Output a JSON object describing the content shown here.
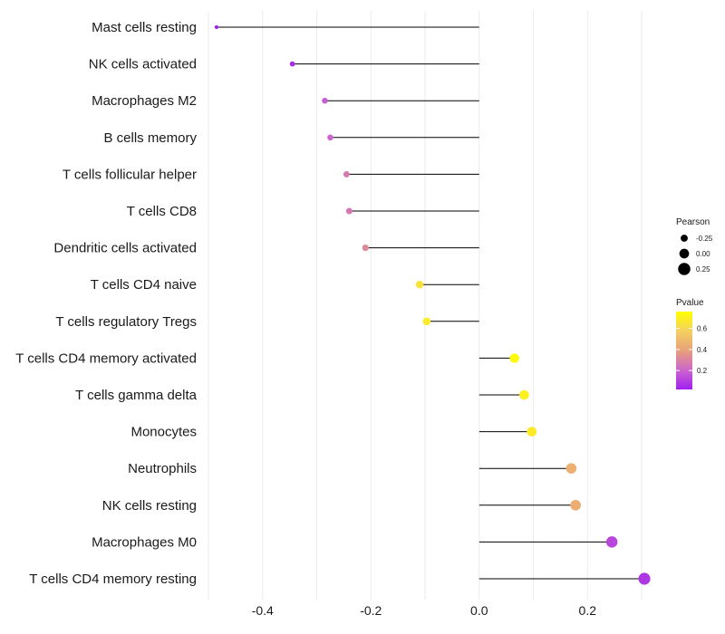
{
  "chart_data": {
    "type": "lollipop",
    "xlim": [
      -0.5,
      0.32
    ],
    "x_ticks": [
      -0.4,
      -0.2,
      0.0,
      0.2
    ],
    "x_tick_labels": [
      "-0.4",
      "-0.2",
      "0.0",
      "0.2"
    ],
    "grid": true,
    "legend_placement": "right",
    "categories": [
      "Mast cells resting",
      "NK cells activated",
      "Macrophages M2",
      "B cells memory",
      "T cells follicular helper",
      "T cells CD8",
      "Dendritic cells activated",
      "T cells CD4 naive",
      "T cells regulatory  Tregs",
      "T cells CD4 memory activated",
      "T cells gamma delta",
      "Monocytes",
      "Neutrophils",
      "NK cells resting",
      "Macrophages M0",
      "T cells CD4 memory resting"
    ],
    "pearson": [
      -0.485,
      -0.345,
      -0.285,
      -0.275,
      -0.245,
      -0.24,
      -0.21,
      -0.11,
      -0.097,
      0.065,
      0.083,
      0.097,
      0.17,
      0.178,
      0.245,
      0.305
    ],
    "pvalue": [
      0.02,
      0.05,
      0.18,
      0.2,
      0.27,
      0.26,
      0.32,
      0.65,
      0.68,
      0.75,
      0.7,
      0.68,
      0.45,
      0.44,
      0.12,
      0.08
    ],
    "size_legend": {
      "title": "Pearson",
      "values": [
        -0.25,
        0.0,
        0.25
      ],
      "labels": [
        "-0.25",
        "0.00",
        "0.25"
      ]
    },
    "color_legend": {
      "title": "Pvalue",
      "range": [
        0.02,
        0.76
      ],
      "ticks": [
        0.2,
        0.4,
        0.6
      ],
      "tick_labels": [
        "0.2",
        "0.4",
        "0.6"
      ],
      "colors": [
        "#a020f0",
        "#cc66cc",
        "#e8a07a",
        "#f5d060",
        "#ffff00"
      ]
    }
  }
}
